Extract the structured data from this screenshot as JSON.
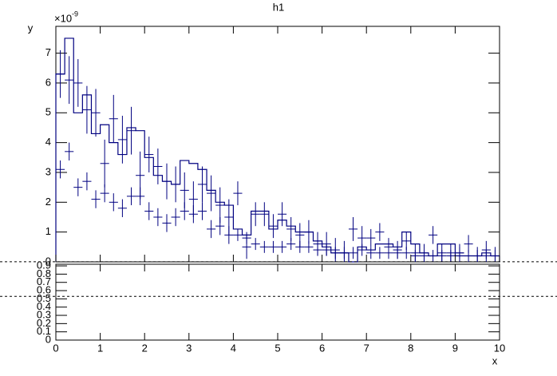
{
  "chart_data": [
    {
      "type": "histogram",
      "title": "h1",
      "y_label": "y",
      "y_multiplier": "×10",
      "y_multiplier_exp": "-9",
      "bins": [
        0,
        0.2,
        0.4,
        0.6,
        0.8,
        1,
        1.2,
        1.4,
        1.6,
        1.8,
        2,
        2.2,
        2.4,
        2.6,
        2.8,
        3,
        3.2,
        3.4,
        3.6,
        3.8,
        4,
        4.2,
        4.4,
        4.6,
        4.8,
        5,
        5.2,
        5.4,
        5.6,
        5.8,
        6,
        6.2,
        6.4,
        6.6,
        6.8,
        7,
        7.2,
        7.4,
        7.6,
        7.8,
        8,
        8.2,
        8.4,
        8.6,
        8.8,
        9,
        9.2,
        9.4,
        9.6,
        9.8,
        10
      ],
      "counts": [
        6.3,
        7.5,
        5.0,
        5.6,
        4.3,
        4.6,
        4.0,
        3.6,
        4.5,
        4.4,
        3.5,
        2.9,
        2.7,
        2.6,
        3.4,
        3.3,
        3.1,
        2.4,
        2.0,
        1.9,
        1.1,
        0.9,
        1.7,
        1.7,
        1.1,
        1.4,
        1.2,
        1.0,
        1.0,
        0.7,
        0.5,
        0.3,
        0.3,
        0.0,
        0.5,
        0.4,
        0.6,
        0.6,
        0.5,
        1.0,
        0.6,
        0.3,
        0.2,
        0.6,
        0.6,
        0.2,
        0.2,
        0.2,
        0.3,
        0.2
      ],
      "color": "#000080",
      "series": [
        {
          "color": "#000080",
          "values": [
            6.3,
            6.1,
            6.0,
            5.1,
            5.0,
            3.3,
            4.8,
            4.1,
            4.4,
            2.9,
            3.6,
            3.2,
            2.7,
            2.6,
            2.4,
            2.1,
            2.6,
            2.3,
            1.9,
            1.5,
            2.3,
            0.5,
            1.6,
            1.6,
            1.2,
            1.6,
            1.1,
            0.9,
            1.0,
            0.6,
            0.6,
            0.4,
            0.3,
            1.1,
            0.8,
            0.8,
            1.0,
            0.5,
            0.4,
            0.7,
            0.3,
            0.3,
            0.9,
            0.3,
            0.3,
            0.3,
            0.6,
            0.2,
            0.4,
            0.2
          ],
          "errors": [
            0.8,
            0.8,
            0.8,
            0.8,
            0.8,
            0.8,
            0.8,
            0.8,
            0.8,
            0.8,
            0.6,
            0.6,
            0.6,
            0.6,
            0.6,
            0.6,
            0.6,
            0.6,
            0.6,
            0.6,
            0.4,
            0.4,
            0.4,
            0.4,
            0.4,
            0.4,
            0.4,
            0.4,
            0.4,
            0.4,
            0.4,
            0.4,
            0.4,
            0.4,
            0.4,
            0.3,
            0.3,
            0.3,
            0.3,
            0.3,
            0.3,
            0.3,
            0.3,
            0.3,
            0.3,
            0.3,
            0.3,
            0.3,
            0.3,
            0.3
          ]
        },
        {
          "color": "#000080",
          "values": [
            3.1,
            3.7,
            2.5,
            2.7,
            2.1,
            2.3,
            2.0,
            1.8,
            2.2,
            2.2,
            1.7,
            1.5,
            1.3,
            1.5,
            1.7,
            1.6,
            1.7,
            1.1,
            1.2,
            0.9,
            0.9,
            0.8,
            0.6,
            0.5,
            0.5,
            0.5,
            0.6,
            0.5,
            0.5,
            0.4,
            0.4,
            0.3,
            0.3,
            0.3,
            0.4,
            0.3,
            0.3,
            0.3,
            0.3,
            0.3,
            0.2,
            0.2,
            0.2,
            0.2,
            0.2,
            0.3,
            0.2,
            0.2,
            0.2,
            0.2
          ],
          "errors": [
            0.3,
            0.3,
            0.3,
            0.3,
            0.3,
            0.3,
            0.3,
            0.3,
            0.3,
            0.3,
            0.3,
            0.3,
            0.3,
            0.3,
            0.3,
            0.3,
            0.3,
            0.3,
            0.3,
            0.3,
            0.2,
            0.2,
            0.2,
            0.2,
            0.2,
            0.2,
            0.2,
            0.2,
            0.2,
            0.2,
            0.2,
            0.2,
            0.2,
            0.2,
            0.2,
            0.2,
            0.2,
            0.2,
            0.2,
            0.2,
            0.2,
            0.2,
            0.2,
            0.2,
            0.2,
            0.2,
            0.2,
            0.2,
            0.2,
            0.2
          ]
        }
      ],
      "xlim": [
        0,
        10
      ],
      "ylim": [
        0,
        7.9
      ],
      "yticks": [
        0,
        1,
        2,
        3,
        4,
        5,
        6,
        7
      ]
    },
    {
      "type": "frame",
      "x_label": "x",
      "xlim": [
        0,
        10
      ],
      "xticks": [
        0,
        1,
        2,
        3,
        4,
        5,
        6,
        7,
        8,
        9,
        10
      ],
      "ylim": [
        0,
        0.92
      ],
      "yticks": [
        0,
        0.1,
        0.2,
        0.3,
        0.4,
        0.5,
        0.6,
        0.7,
        0.8,
        0.9
      ],
      "hlines": [
        0.53,
        0.95
      ]
    }
  ]
}
